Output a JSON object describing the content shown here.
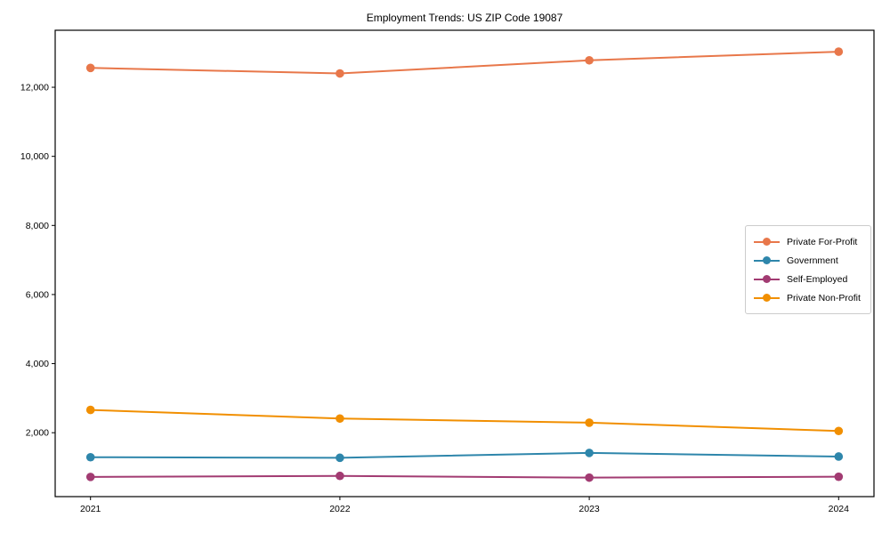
{
  "chart_data": {
    "type": "line",
    "title": "Employment Trends: US ZIP Code 19087",
    "xlabel": "",
    "ylabel": "",
    "x": [
      2021,
      2022,
      2023,
      2024
    ],
    "xtick_labels": [
      "2021",
      "2022",
      "2023",
      "2024"
    ],
    "yticks": [
      2000,
      4000,
      6000,
      8000,
      10000,
      12000
    ],
    "ytick_labels": [
      "2,000",
      "4,000",
      "6,000",
      "8,000",
      "10,000",
      "12,000"
    ],
    "ylim": [
      150,
      13650
    ],
    "grid": false,
    "legend_position": "center-right",
    "marker": "circle",
    "series": [
      {
        "name": "Private For-Profit",
        "color": "#E8774A",
        "values": [
          12560,
          12400,
          12780,
          13030
        ]
      },
      {
        "name": "Government",
        "color": "#2E86AB",
        "values": [
          1290,
          1275,
          1415,
          1310
        ]
      },
      {
        "name": "Self-Employed",
        "color": "#A23B72",
        "values": [
          720,
          750,
          700,
          725
        ]
      },
      {
        "name": "Private Non-Profit",
        "color": "#F18F01",
        "values": [
          2660,
          2410,
          2290,
          2050
        ]
      }
    ]
  }
}
